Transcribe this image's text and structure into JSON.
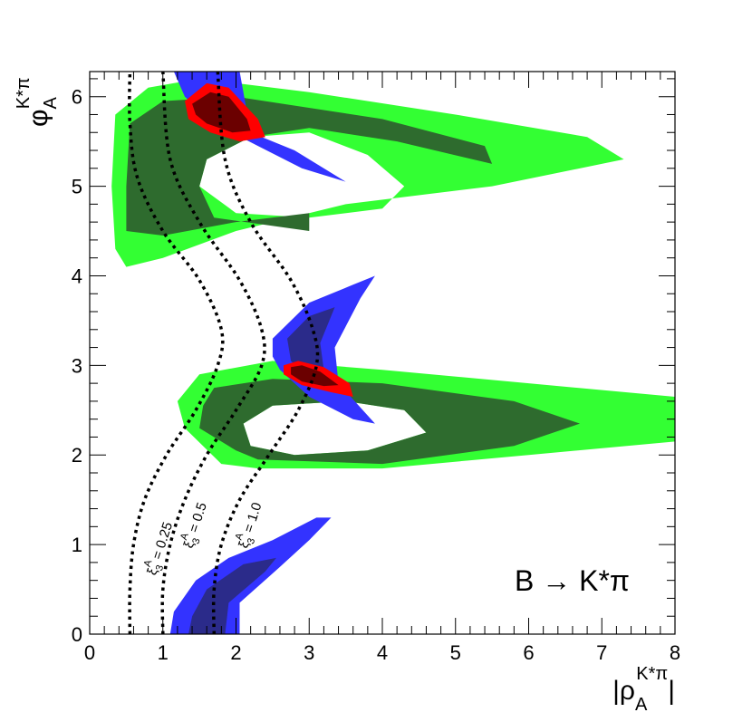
{
  "chart_data": {
    "type": "contour",
    "process_label": "B → K*π",
    "x_axis": {
      "label_main": "|ρ",
      "label_sub": "A",
      "label_sup": "K*π",
      "label_end": "|",
      "range": [
        0,
        8
      ],
      "ticks": [
        0,
        1,
        2,
        3,
        4,
        5,
        6,
        7,
        8
      ],
      "tick_labels": [
        "0",
        "1",
        "2",
        "3",
        "4",
        "5",
        "6",
        "7",
        "8"
      ]
    },
    "y_axis": {
      "label_main": "φ",
      "label_sub": "A",
      "label_sup": "K*π",
      "range": [
        0,
        6.28
      ],
      "ticks": [
        0,
        1,
        2,
        3,
        4,
        5,
        6
      ],
      "tick_labels": [
        "0",
        "1",
        "2",
        "3",
        "4",
        "5",
        "6"
      ]
    },
    "colors": {
      "green_outer": "#33ff33",
      "green_inner": "#2e6b2e",
      "blue_outer": "#3333ff",
      "blue_inner": "#2b2b8a",
      "red_outer": "#ff0000",
      "red_inner": "#6b0000"
    },
    "regions": [
      {
        "name": "green-upper-outer",
        "color": "green_outer",
        "outline": [
          [
            0.35,
            4.3
          ],
          [
            0.5,
            4.1
          ],
          [
            1.0,
            4.2
          ],
          [
            2.0,
            4.5
          ],
          [
            3.5,
            4.8
          ],
          [
            5.5,
            5.0
          ],
          [
            7.3,
            5.3
          ],
          [
            6.8,
            5.55
          ],
          [
            5.0,
            5.8
          ],
          [
            3.0,
            6.05
          ],
          [
            1.5,
            6.2
          ],
          [
            0.8,
            6.1
          ],
          [
            0.35,
            5.8
          ],
          [
            0.3,
            5.0
          ]
        ],
        "hole": [
          [
            1.5,
            5.0
          ],
          [
            2.0,
            4.7
          ],
          [
            3.0,
            4.65
          ],
          [
            4.0,
            4.75
          ],
          [
            4.3,
            5.0
          ],
          [
            3.8,
            5.35
          ],
          [
            3.0,
            5.6
          ],
          [
            2.2,
            5.55
          ],
          [
            1.6,
            5.3
          ]
        ]
      },
      {
        "name": "green-upper-inner",
        "color": "green_inner",
        "outline": [
          [
            0.5,
            4.5
          ],
          [
            1.0,
            4.45
          ],
          [
            2.0,
            4.6
          ],
          [
            3.0,
            4.7
          ],
          [
            3.0,
            4.5
          ],
          [
            1.7,
            4.65
          ],
          [
            1.5,
            5.0
          ],
          [
            1.6,
            5.3
          ],
          [
            2.2,
            5.55
          ],
          [
            3.0,
            5.65
          ],
          [
            4.2,
            5.5
          ],
          [
            5.5,
            5.25
          ],
          [
            5.4,
            5.45
          ],
          [
            4.0,
            5.75
          ],
          [
            2.0,
            6.0
          ],
          [
            1.0,
            5.95
          ],
          [
            0.55,
            5.7
          ],
          [
            0.5,
            5.0
          ]
        ]
      },
      {
        "name": "green-lower-outer",
        "color": "green_outer",
        "outline": [
          [
            1.3,
            2.3
          ],
          [
            1.8,
            1.9
          ],
          [
            2.3,
            1.85
          ],
          [
            4.0,
            1.85
          ],
          [
            6.0,
            2.0
          ],
          [
            8.0,
            2.15
          ],
          [
            8.0,
            2.65
          ],
          [
            6.0,
            2.8
          ],
          [
            4.0,
            2.95
          ],
          [
            2.5,
            3.05
          ],
          [
            1.5,
            2.9
          ],
          [
            1.2,
            2.6
          ]
        ],
        "hole": [
          [
            2.2,
            2.1
          ],
          [
            2.8,
            2.0
          ],
          [
            3.8,
            2.05
          ],
          [
            4.6,
            2.25
          ],
          [
            4.3,
            2.5
          ],
          [
            3.5,
            2.6
          ],
          [
            2.5,
            2.55
          ],
          [
            2.1,
            2.35
          ]
        ]
      },
      {
        "name": "green-lower-inner",
        "color": "green_inner",
        "outline": [
          [
            1.5,
            2.3
          ],
          [
            2.0,
            2.05
          ],
          [
            2.3,
            1.95
          ],
          [
            4.0,
            1.9
          ],
          [
            5.8,
            2.1
          ],
          [
            6.7,
            2.35
          ],
          [
            5.8,
            2.6
          ],
          [
            4.0,
            2.8
          ],
          [
            2.5,
            2.85
          ],
          [
            1.7,
            2.75
          ],
          [
            1.55,
            2.55
          ]
        ],
        "hole": [
          [
            2.2,
            2.1
          ],
          [
            2.8,
            2.0
          ],
          [
            3.8,
            2.05
          ],
          [
            4.6,
            2.25
          ],
          [
            4.3,
            2.5
          ],
          [
            3.5,
            2.6
          ],
          [
            2.5,
            2.55
          ],
          [
            2.1,
            2.35
          ]
        ]
      },
      {
        "name": "blue-top",
        "color": "blue_outer",
        "outline": [
          [
            1.15,
            6.28
          ],
          [
            2.05,
            6.28
          ],
          [
            2.2,
            5.6
          ],
          [
            2.8,
            5.4
          ],
          [
            3.5,
            5.05
          ],
          [
            2.9,
            5.2
          ],
          [
            2.3,
            5.45
          ],
          [
            1.7,
            5.7
          ],
          [
            1.3,
            6.0
          ]
        ]
      },
      {
        "name": "blue-middle-outer",
        "color": "blue_outer",
        "outline": [
          [
            2.5,
            3.3
          ],
          [
            3.0,
            3.7
          ],
          [
            3.6,
            3.9
          ],
          [
            3.9,
            4.0
          ],
          [
            3.7,
            3.75
          ],
          [
            3.35,
            3.2
          ],
          [
            3.4,
            2.8
          ],
          [
            3.9,
            2.35
          ],
          [
            3.6,
            2.4
          ],
          [
            3.0,
            2.65
          ],
          [
            2.6,
            2.95
          ],
          [
            2.5,
            3.1
          ]
        ]
      },
      {
        "name": "blue-middle-inner",
        "color": "blue_inner",
        "outline": [
          [
            2.7,
            3.3
          ],
          [
            3.0,
            3.55
          ],
          [
            3.35,
            3.65
          ],
          [
            3.15,
            3.25
          ],
          [
            3.2,
            2.95
          ],
          [
            3.0,
            2.85
          ],
          [
            2.75,
            3.05
          ]
        ]
      },
      {
        "name": "blue-bottom-outer",
        "color": "blue_outer",
        "outline": [
          [
            1.1,
            0.0
          ],
          [
            2.05,
            0.0
          ],
          [
            2.05,
            0.35
          ],
          [
            2.6,
            0.75
          ],
          [
            3.0,
            1.05
          ],
          [
            3.3,
            1.3
          ],
          [
            3.1,
            1.3
          ],
          [
            2.5,
            1.05
          ],
          [
            1.9,
            0.85
          ],
          [
            1.45,
            0.6
          ],
          [
            1.15,
            0.25
          ]
        ]
      },
      {
        "name": "blue-bottom-inner",
        "color": "blue_inner",
        "outline": [
          [
            1.35,
            0.0
          ],
          [
            1.85,
            0.0
          ],
          [
            1.9,
            0.35
          ],
          [
            2.4,
            0.7
          ],
          [
            2.55,
            0.85
          ],
          [
            2.1,
            0.78
          ],
          [
            1.6,
            0.5
          ],
          [
            1.4,
            0.2
          ]
        ]
      },
      {
        "name": "red-top-outer",
        "color": "red_outer",
        "outline": [
          [
            1.3,
            5.95
          ],
          [
            1.6,
            6.15
          ],
          [
            1.9,
            6.1
          ],
          [
            2.3,
            5.75
          ],
          [
            2.4,
            5.55
          ],
          [
            2.05,
            5.5
          ],
          [
            1.65,
            5.6
          ],
          [
            1.35,
            5.75
          ]
        ]
      },
      {
        "name": "red-top-inner",
        "color": "red_inner",
        "outline": [
          [
            1.4,
            5.92
          ],
          [
            1.65,
            6.05
          ],
          [
            1.9,
            6.0
          ],
          [
            2.15,
            5.75
          ],
          [
            2.2,
            5.62
          ],
          [
            1.95,
            5.6
          ],
          [
            1.6,
            5.7
          ],
          [
            1.45,
            5.8
          ]
        ]
      },
      {
        "name": "red-middle-outer",
        "color": "red_outer",
        "outline": [
          [
            2.65,
            3.0
          ],
          [
            2.85,
            3.05
          ],
          [
            3.2,
            2.98
          ],
          [
            3.55,
            2.8
          ],
          [
            3.6,
            2.65
          ],
          [
            3.3,
            2.7
          ],
          [
            2.9,
            2.78
          ],
          [
            2.65,
            2.9
          ]
        ]
      },
      {
        "name": "red-middle-inner",
        "color": "red_inner",
        "outline": [
          [
            2.75,
            2.98
          ],
          [
            2.9,
            3.0
          ],
          [
            3.15,
            2.93
          ],
          [
            3.4,
            2.78
          ],
          [
            3.2,
            2.77
          ],
          [
            2.9,
            2.82
          ],
          [
            2.75,
            2.9
          ]
        ]
      }
    ],
    "curves": [
      {
        "name": "xi3A-0.25",
        "label_main": "ξ",
        "label_sub": "3",
        "label_sup": "A",
        "label_value": "= 0.25",
        "points": [
          [
            0.55,
            0.0
          ],
          [
            0.55,
            0.5
          ],
          [
            0.6,
            1.0
          ],
          [
            0.75,
            1.5
          ],
          [
            1.05,
            2.0
          ],
          [
            1.45,
            2.5
          ],
          [
            1.75,
            3.0
          ],
          [
            1.8,
            3.4
          ],
          [
            1.5,
            3.95
          ],
          [
            1.0,
            4.5
          ],
          [
            0.65,
            5.1
          ],
          [
            0.55,
            5.7
          ],
          [
            0.55,
            6.3
          ]
        ]
      },
      {
        "name": "xi3A-0.5",
        "label_main": "ξ",
        "label_sub": "3",
        "label_sup": "A",
        "label_value": "= 0.5",
        "points": [
          [
            1.0,
            0.0
          ],
          [
            1.0,
            0.5
          ],
          [
            1.1,
            1.0
          ],
          [
            1.3,
            1.5
          ],
          [
            1.6,
            2.0
          ],
          [
            2.0,
            2.5
          ],
          [
            2.35,
            3.0
          ],
          [
            2.35,
            3.4
          ],
          [
            2.05,
            3.95
          ],
          [
            1.5,
            4.6
          ],
          [
            1.1,
            5.3
          ],
          [
            1.0,
            6.28
          ]
        ]
      },
      {
        "name": "xi3A-1.0",
        "label_main": "ξ",
        "label_sub": "3",
        "label_sup": "A",
        "label_value": "= 1.0",
        "points": [
          [
            1.7,
            0.0
          ],
          [
            1.7,
            0.5
          ],
          [
            1.8,
            1.0
          ],
          [
            2.05,
            1.5
          ],
          [
            2.45,
            2.0
          ],
          [
            2.85,
            2.5
          ],
          [
            3.1,
            3.0
          ],
          [
            3.05,
            3.4
          ],
          [
            2.75,
            3.95
          ],
          [
            2.2,
            4.6
          ],
          [
            1.85,
            5.3
          ],
          [
            1.75,
            6.28
          ]
        ]
      }
    ]
  }
}
